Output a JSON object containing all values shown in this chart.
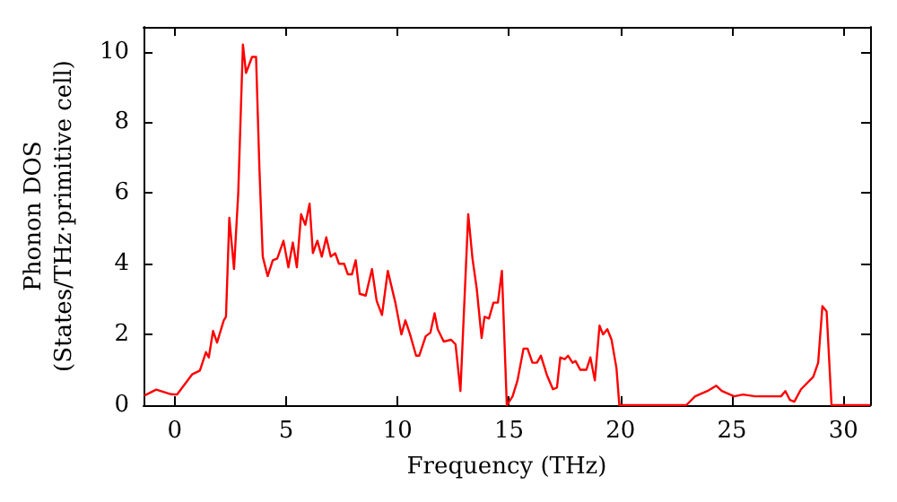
{
  "chart_data": {
    "type": "line",
    "xlabel": "Frequency (THz)",
    "ylabel": "Phonon DOS\n(States/THz·primitive cell)",
    "xlim": [
      -1.4,
      31.2
    ],
    "ylim": [
      0,
      10.7
    ],
    "xticks": [
      0,
      5,
      10,
      15,
      20,
      25,
      30
    ],
    "yticks": [
      0,
      2,
      4,
      6,
      8,
      10
    ],
    "grid": false,
    "marker": "none",
    "line_style": "solid",
    "series": [
      {
        "color": "#ff0000",
        "x": [
          -1.37,
          -0.83,
          -0.16,
          0.1,
          0.78,
          1.13,
          1.4,
          1.53,
          1.72,
          1.9,
          2.2,
          2.3,
          2.45,
          2.66,
          2.85,
          3.06,
          3.2,
          3.47,
          3.65,
          3.8,
          3.95,
          4.17,
          4.4,
          4.6,
          4.88,
          5.1,
          5.3,
          5.48,
          5.67,
          5.86,
          6.05,
          6.2,
          6.4,
          6.6,
          6.8,
          7.0,
          7.2,
          7.37,
          7.6,
          7.77,
          7.95,
          8.12,
          8.3,
          8.57,
          8.85,
          9.06,
          9.3,
          9.56,
          9.9,
          10.17,
          10.35,
          10.56,
          10.83,
          10.97,
          11.26,
          11.47,
          11.66,
          11.8,
          12.07,
          12.4,
          12.6,
          12.82,
          13.17,
          13.36,
          13.55,
          13.77,
          13.9,
          14.1,
          14.3,
          14.5,
          14.68,
          14.9,
          15.16,
          15.38,
          15.65,
          15.83,
          16.05,
          16.25,
          16.43,
          16.7,
          16.97,
          17.15,
          17.3,
          17.5,
          17.65,
          17.85,
          17.98,
          18.2,
          18.47,
          18.65,
          18.85,
          19.06,
          19.22,
          19.41,
          19.6,
          19.82,
          19.95,
          22.95,
          23.35,
          23.9,
          24.3,
          24.55,
          25.1,
          25.5,
          26.05,
          26.85,
          27.2,
          27.4,
          27.6,
          27.8,
          28.1,
          28.65,
          28.87,
          29.06,
          29.25,
          29.47,
          31.2
        ],
        "values": [
          0.27,
          0.44,
          0.31,
          0.3,
          0.87,
          0.98,
          1.5,
          1.35,
          2.1,
          1.77,
          2.4,
          2.5,
          5.3,
          3.85,
          6.0,
          10.2,
          9.4,
          9.85,
          9.85,
          6.7,
          4.2,
          3.65,
          4.1,
          4.15,
          4.65,
          3.9,
          4.6,
          3.9,
          5.4,
          5.1,
          5.7,
          4.3,
          4.65,
          4.2,
          4.75,
          4.2,
          4.3,
          4.0,
          4.0,
          3.7,
          3.7,
          4.1,
          3.15,
          3.1,
          3.85,
          2.95,
          2.55,
          3.8,
          2.9,
          2.0,
          2.4,
          2.0,
          1.4,
          1.4,
          1.95,
          2.05,
          2.6,
          2.15,
          1.8,
          1.85,
          1.72,
          0.4,
          5.4,
          4.15,
          3.3,
          1.9,
          2.5,
          2.45,
          2.9,
          2.9,
          3.8,
          0.0,
          0.25,
          0.7,
          1.6,
          1.6,
          1.2,
          1.2,
          1.4,
          0.85,
          0.45,
          0.5,
          1.35,
          1.3,
          1.4,
          1.2,
          1.25,
          1.0,
          1.0,
          1.35,
          0.7,
          2.25,
          2.0,
          2.15,
          1.85,
          1.05,
          0.0,
          0.0,
          0.25,
          0.4,
          0.55,
          0.4,
          0.25,
          0.3,
          0.25,
          0.25,
          0.25,
          0.4,
          0.15,
          0.1,
          0.45,
          0.8,
          1.2,
          2.8,
          2.65,
          0.0,
          0.0
        ]
      }
    ]
  }
}
